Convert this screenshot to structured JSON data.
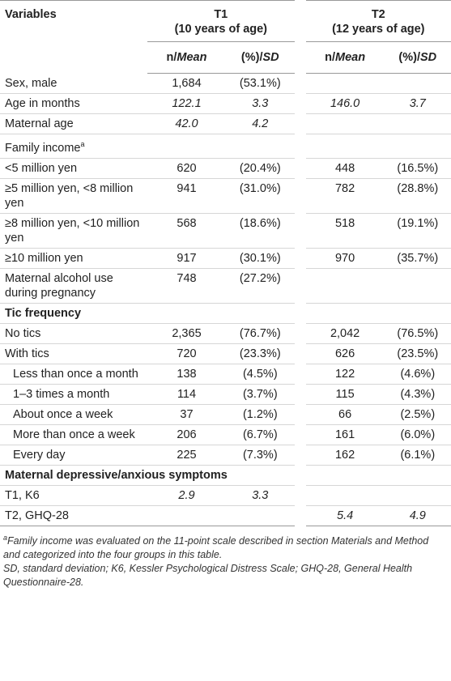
{
  "table": {
    "header": {
      "first": "Variables",
      "groups": [
        {
          "name": "T1",
          "sub": "(10 years of age)"
        },
        {
          "name": "T2",
          "sub": "(12 years of age)"
        }
      ],
      "subheads": [
        {
          "plain": "n/",
          "italic": "Mean"
        },
        {
          "plain": "(%)/",
          "italic": "SD"
        },
        {
          "plain": "n/",
          "italic": "Mean"
        },
        {
          "plain": "(%)/",
          "italic": "SD"
        }
      ]
    },
    "rows": [
      {
        "label": "Sex, male",
        "cells": [
          "1,684",
          "(53.1%)",
          null,
          null
        ]
      },
      {
        "label": "Age in months",
        "italic": true,
        "cells": [
          "122.1",
          "3.3",
          "146.0",
          "3.7"
        ]
      },
      {
        "label": "Maternal age",
        "italic": true,
        "cells": [
          "42.0",
          "4.2",
          null,
          null
        ]
      },
      {
        "label": "Family income",
        "sup": "a",
        "cells": [
          null,
          null,
          null,
          null
        ]
      },
      {
        "label": "<5 million yen",
        "cells": [
          "620",
          "(20.4%)",
          "448",
          "(16.5%)"
        ]
      },
      {
        "label": "≥5 million yen, <8 million yen",
        "cells": [
          "941",
          "(31.0%)",
          "782",
          "(28.8%)"
        ]
      },
      {
        "label": "≥8 million yen, <10 million yen",
        "cells": [
          "568",
          "(18.6%)",
          "518",
          "(19.1%)"
        ]
      },
      {
        "label": "≥10 million yen",
        "cells": [
          "917",
          "(30.1%)",
          "970",
          "(35.7%)"
        ]
      },
      {
        "label": "Maternal alcohol use during pregnancy",
        "cells": [
          "748",
          "(27.2%)",
          null,
          null
        ]
      },
      {
        "label": "Tic frequency",
        "section": true
      },
      {
        "label": "No tics",
        "cells": [
          "2,365",
          "(76.7%)",
          "2,042",
          "(76.5%)"
        ]
      },
      {
        "label": "With tics",
        "cells": [
          "720",
          "(23.3%)",
          "626",
          "(23.5%)"
        ]
      },
      {
        "label": "Less than once a month",
        "indent": true,
        "cells": [
          "138",
          "(4.5%)",
          "122",
          "(4.6%)"
        ]
      },
      {
        "label": "1–3 times a month",
        "indent": true,
        "cells": [
          "114",
          "(3.7%)",
          "115",
          "(4.3%)"
        ]
      },
      {
        "label": "About once a week",
        "indent": true,
        "cells": [
          "37",
          "(1.2%)",
          "66",
          "(2.5%)"
        ]
      },
      {
        "label": "More than once a week",
        "indent": true,
        "cells": [
          "206",
          "(6.7%)",
          "161",
          "(6.0%)"
        ]
      },
      {
        "label": "Every day",
        "indent": true,
        "cells": [
          "225",
          "(7.3%)",
          "162",
          "(6.1%)"
        ]
      },
      {
        "label": "Maternal depressive/anxious symptoms",
        "section": true
      },
      {
        "label": "T1, K6",
        "italic": true,
        "cells": [
          "2.9",
          "3.3",
          null,
          null
        ]
      },
      {
        "label": "T2, GHQ-28",
        "italic": true,
        "cells": [
          null,
          null,
          "5.4",
          "4.9"
        ]
      }
    ],
    "footnotes": [
      {
        "marker": "a",
        "text": "Family income was evaluated on the 11-point scale described in section Materials and Method and categorized into the four groups in this table."
      },
      {
        "text": "SD, standard deviation; K6, Kessler Psychological Distress Scale; GHQ-28, General Health Questionnaire-28."
      }
    ]
  }
}
